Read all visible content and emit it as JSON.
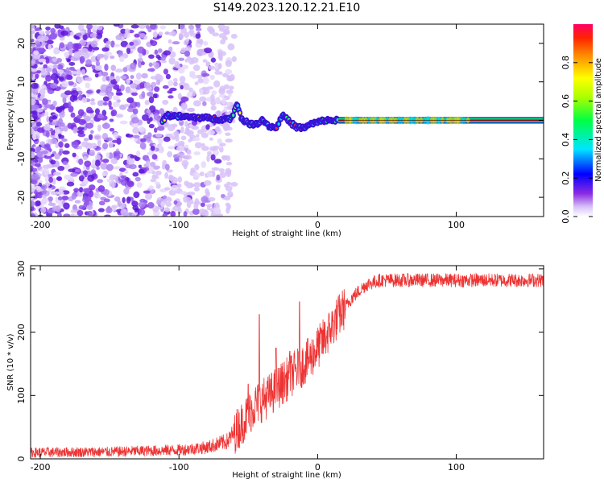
{
  "title": "S149.2023.120.12.21.E10",
  "chart_data": [
    {
      "type": "heatmap",
      "xlabel": "Height of straight line (km)",
      "ylabel": "Frequency (Hz)",
      "xlim": [
        -207,
        163
      ],
      "ylim": [
        -25,
        25
      ],
      "xticks": [
        -200,
        -100,
        0,
        100
      ],
      "yticks": [
        -20,
        -10,
        0,
        10,
        20
      ],
      "colorbar": {
        "label": "Normalized spectral amplitude",
        "range": [
          0,
          1
        ],
        "ticks": [
          0.0,
          0.2,
          0.4,
          0.6,
          0.8
        ]
      },
      "ridge": [
        {
          "x": -110,
          "y": 1.3
        },
        {
          "x": -95,
          "y": 0.9
        },
        {
          "x": -80,
          "y": 0.6
        },
        {
          "x": -70,
          "y": 0.3
        },
        {
          "x": -62,
          "y": 0.5
        },
        {
          "x": -58,
          "y": 4.5
        },
        {
          "x": -55,
          "y": 0.5
        },
        {
          "x": -50,
          "y": -0.8
        },
        {
          "x": -45,
          "y": -1.2
        },
        {
          "x": -40,
          "y": 0.2
        },
        {
          "x": -35,
          "y": -1.5
        },
        {
          "x": -30,
          "y": -2.0
        },
        {
          "x": -25,
          "y": 1.5
        },
        {
          "x": -20,
          "y": -0.5
        },
        {
          "x": -15,
          "y": -1.8
        },
        {
          "x": -10,
          "y": -2.0
        },
        {
          "x": -5,
          "y": -1.0
        },
        {
          "x": 0,
          "y": -0.5
        },
        {
          "x": 5,
          "y": 0.0
        },
        {
          "x": 15,
          "y": 0.0
        },
        {
          "x": 163,
          "y": 0.0
        }
      ],
      "noise_region_xmax": -70
    },
    {
      "type": "line",
      "xlabel": "Height of straight line (km)",
      "ylabel": "SNR (10 * v/v)",
      "xlim": [
        -207,
        163
      ],
      "ylim": [
        0,
        305
      ],
      "xticks": [
        -200,
        -100,
        0,
        100
      ],
      "yticks": [
        0,
        100,
        200,
        300
      ],
      "color": "#ee3333",
      "trend": [
        {
          "x": -207,
          "y": 10
        },
        {
          "x": -150,
          "y": 11
        },
        {
          "x": -100,
          "y": 14
        },
        {
          "x": -80,
          "y": 18
        },
        {
          "x": -65,
          "y": 28
        },
        {
          "x": -55,
          "y": 55
        },
        {
          "x": -45,
          "y": 85
        },
        {
          "x": -35,
          "y": 100
        },
        {
          "x": -25,
          "y": 120
        },
        {
          "x": -15,
          "y": 140
        },
        {
          "x": -5,
          "y": 160
        },
        {
          "x": 5,
          "y": 190
        },
        {
          "x": 15,
          "y": 225
        },
        {
          "x": 25,
          "y": 255
        },
        {
          "x": 35,
          "y": 275
        },
        {
          "x": 45,
          "y": 282
        },
        {
          "x": 163,
          "y": 282
        }
      ],
      "spikes": [
        {
          "x": -42,
          "y": 228
        },
        {
          "x": -13,
          "y": 248
        },
        {
          "x": -30,
          "y": 175
        },
        {
          "x": -20,
          "y": 170
        },
        {
          "x": -50,
          "y": 118
        }
      ]
    }
  ]
}
